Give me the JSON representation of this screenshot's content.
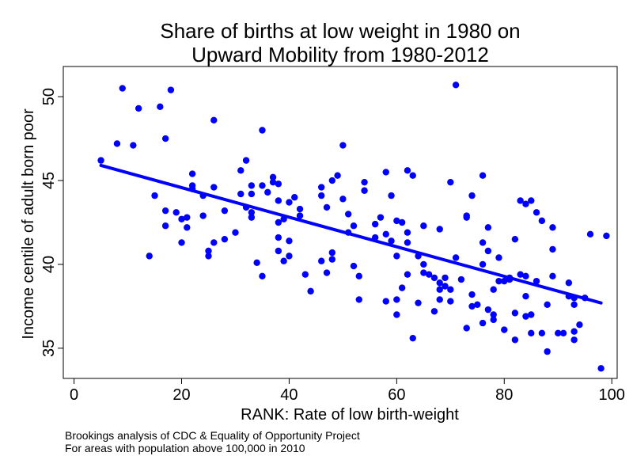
{
  "chart_data": {
    "type": "scatter",
    "title_lines": [
      "Share of births at low weight in 1980 on",
      "Upward Mobility from 1980-2012"
    ],
    "xlabel": "RANK: Rate of low birth-weight",
    "ylabel": "Income centile of adult born poor",
    "xlim": [
      -2,
      101
    ],
    "ylim": [
      33.2,
      51.8
    ],
    "xticks": [
      0,
      20,
      40,
      60,
      80,
      100
    ],
    "yticks": [
      35,
      40,
      45,
      50
    ],
    "point_color": "#0000ff",
    "line_color": "#0000ff",
    "fit_line": {
      "x": [
        5,
        98
      ],
      "y": [
        45.9,
        37.7
      ]
    },
    "points": [
      {
        "x": 5,
        "y": 46.2
      },
      {
        "x": 8,
        "y": 47.2
      },
      {
        "x": 9,
        "y": 50.5
      },
      {
        "x": 11,
        "y": 47.1
      },
      {
        "x": 12,
        "y": 49.3
      },
      {
        "x": 14,
        "y": 40.5
      },
      {
        "x": 15,
        "y": 44.1
      },
      {
        "x": 16,
        "y": 49.4
      },
      {
        "x": 17,
        "y": 47.5
      },
      {
        "x": 17,
        "y": 43.2
      },
      {
        "x": 17,
        "y": 42.3
      },
      {
        "x": 18,
        "y": 50.4
      },
      {
        "x": 19,
        "y": 43.1
      },
      {
        "x": 20,
        "y": 42.7
      },
      {
        "x": 20,
        "y": 41.3
      },
      {
        "x": 21,
        "y": 42.8
      },
      {
        "x": 21,
        "y": 42.2
      },
      {
        "x": 22,
        "y": 45.4
      },
      {
        "x": 22,
        "y": 44.7
      },
      {
        "x": 22,
        "y": 44.5
      },
      {
        "x": 24,
        "y": 44.1
      },
      {
        "x": 24,
        "y": 42.9
      },
      {
        "x": 25,
        "y": 40.8
      },
      {
        "x": 25,
        "y": 40.5
      },
      {
        "x": 26,
        "y": 48.6
      },
      {
        "x": 26,
        "y": 44.6
      },
      {
        "x": 26,
        "y": 41.3
      },
      {
        "x": 28,
        "y": 43.2
      },
      {
        "x": 28,
        "y": 41.5
      },
      {
        "x": 30,
        "y": 41.9
      },
      {
        "x": 31,
        "y": 45.6
      },
      {
        "x": 31,
        "y": 44.2
      },
      {
        "x": 32,
        "y": 46.2
      },
      {
        "x": 32,
        "y": 43.4
      },
      {
        "x": 33,
        "y": 44.7
      },
      {
        "x": 33,
        "y": 44.2
      },
      {
        "x": 33,
        "y": 43.1
      },
      {
        "x": 33,
        "y": 42.8
      },
      {
        "x": 34,
        "y": 40.1
      },
      {
        "x": 35,
        "y": 48.0
      },
      {
        "x": 35,
        "y": 44.7
      },
      {
        "x": 35,
        "y": 39.3
      },
      {
        "x": 36,
        "y": 44.3
      },
      {
        "x": 37,
        "y": 45.2
      },
      {
        "x": 37,
        "y": 44.9
      },
      {
        "x": 38,
        "y": 44.8
      },
      {
        "x": 38,
        "y": 43.8
      },
      {
        "x": 38,
        "y": 42.5
      },
      {
        "x": 38,
        "y": 41.6
      },
      {
        "x": 38,
        "y": 40.8
      },
      {
        "x": 39,
        "y": 42.7
      },
      {
        "x": 39,
        "y": 40.2
      },
      {
        "x": 40,
        "y": 43.7
      },
      {
        "x": 40,
        "y": 41.4
      },
      {
        "x": 40,
        "y": 40.5
      },
      {
        "x": 41,
        "y": 44.0
      },
      {
        "x": 42,
        "y": 43.3
      },
      {
        "x": 42,
        "y": 42.9
      },
      {
        "x": 43,
        "y": 39.4
      },
      {
        "x": 44,
        "y": 38.4
      },
      {
        "x": 46,
        "y": 44.6
      },
      {
        "x": 46,
        "y": 44.1
      },
      {
        "x": 46,
        "y": 40.2
      },
      {
        "x": 47,
        "y": 43.4
      },
      {
        "x": 47,
        "y": 39.5
      },
      {
        "x": 48,
        "y": 45.0
      },
      {
        "x": 48,
        "y": 40.7
      },
      {
        "x": 48,
        "y": 40.3
      },
      {
        "x": 49,
        "y": 45.3
      },
      {
        "x": 50,
        "y": 47.1
      },
      {
        "x": 50,
        "y": 43.9
      },
      {
        "x": 51,
        "y": 43.0
      },
      {
        "x": 51,
        "y": 41.9
      },
      {
        "x": 52,
        "y": 39.9
      },
      {
        "x": 52,
        "y": 42.3
      },
      {
        "x": 53,
        "y": 39.3
      },
      {
        "x": 53,
        "y": 37.9
      },
      {
        "x": 54,
        "y": 44.9
      },
      {
        "x": 54,
        "y": 44.4
      },
      {
        "x": 56,
        "y": 42.4
      },
      {
        "x": 56,
        "y": 41.6
      },
      {
        "x": 57,
        "y": 42.8
      },
      {
        "x": 58,
        "y": 45.5
      },
      {
        "x": 58,
        "y": 41.8
      },
      {
        "x": 58,
        "y": 37.8
      },
      {
        "x": 59,
        "y": 44.1
      },
      {
        "x": 59,
        "y": 41.4
      },
      {
        "x": 60,
        "y": 42.6
      },
      {
        "x": 60,
        "y": 40.5
      },
      {
        "x": 60,
        "y": 37.9
      },
      {
        "x": 60,
        "y": 37.0
      },
      {
        "x": 61,
        "y": 42.5
      },
      {
        "x": 61,
        "y": 38.6
      },
      {
        "x": 62,
        "y": 45.6
      },
      {
        "x": 62,
        "y": 41.9
      },
      {
        "x": 62,
        "y": 41.3
      },
      {
        "x": 62,
        "y": 39.4
      },
      {
        "x": 63,
        "y": 45.3
      },
      {
        "x": 63,
        "y": 35.6
      },
      {
        "x": 64,
        "y": 40.5
      },
      {
        "x": 64,
        "y": 37.7
      },
      {
        "x": 65,
        "y": 42.3
      },
      {
        "x": 65,
        "y": 40.0
      },
      {
        "x": 65,
        "y": 39.5
      },
      {
        "x": 66,
        "y": 39.4
      },
      {
        "x": 67,
        "y": 39.2
      },
      {
        "x": 67,
        "y": 37.2
      },
      {
        "x": 68,
        "y": 42.1
      },
      {
        "x": 68,
        "y": 38.9
      },
      {
        "x": 68,
        "y": 38.5
      },
      {
        "x": 68,
        "y": 37.9
      },
      {
        "x": 69,
        "y": 39.2
      },
      {
        "x": 69,
        "y": 38.7
      },
      {
        "x": 70,
        "y": 44.9
      },
      {
        "x": 70,
        "y": 38.5
      },
      {
        "x": 70,
        "y": 37.8
      },
      {
        "x": 71,
        "y": 50.7
      },
      {
        "x": 71,
        "y": 40.4
      },
      {
        "x": 72,
        "y": 39.1
      },
      {
        "x": 73,
        "y": 42.9
      },
      {
        "x": 73,
        "y": 42.8
      },
      {
        "x": 73,
        "y": 36.2
      },
      {
        "x": 74,
        "y": 44.1
      },
      {
        "x": 74,
        "y": 38.2
      },
      {
        "x": 74,
        "y": 37.5
      },
      {
        "x": 75,
        "y": 37.6
      },
      {
        "x": 76,
        "y": 45.3
      },
      {
        "x": 76,
        "y": 41.3
      },
      {
        "x": 76,
        "y": 40.0
      },
      {
        "x": 76,
        "y": 36.5
      },
      {
        "x": 77,
        "y": 42.2
      },
      {
        "x": 77,
        "y": 40.8
      },
      {
        "x": 77,
        "y": 37.3
      },
      {
        "x": 78,
        "y": 38.5
      },
      {
        "x": 78,
        "y": 37.0
      },
      {
        "x": 78,
        "y": 36.7
      },
      {
        "x": 79,
        "y": 39.0
      },
      {
        "x": 79,
        "y": 40.4
      },
      {
        "x": 80,
        "y": 39.0
      },
      {
        "x": 80,
        "y": 36.1
      },
      {
        "x": 81,
        "y": 39.2
      },
      {
        "x": 81,
        "y": 39.1
      },
      {
        "x": 82,
        "y": 41.5
      },
      {
        "x": 82,
        "y": 37.1
      },
      {
        "x": 82,
        "y": 35.5
      },
      {
        "x": 83,
        "y": 43.8
      },
      {
        "x": 83,
        "y": 39.4
      },
      {
        "x": 84,
        "y": 43.6
      },
      {
        "x": 84,
        "y": 39.3
      },
      {
        "x": 84,
        "y": 38.1
      },
      {
        "x": 84,
        "y": 36.9
      },
      {
        "x": 85,
        "y": 43.8
      },
      {
        "x": 85,
        "y": 37.0
      },
      {
        "x": 85,
        "y": 35.9
      },
      {
        "x": 86,
        "y": 43.1
      },
      {
        "x": 86,
        "y": 39.0
      },
      {
        "x": 87,
        "y": 42.6
      },
      {
        "x": 87,
        "y": 35.9
      },
      {
        "x": 88,
        "y": 37.6
      },
      {
        "x": 88,
        "y": 34.8
      },
      {
        "x": 89,
        "y": 42.2
      },
      {
        "x": 89,
        "y": 40.9
      },
      {
        "x": 89,
        "y": 39.3
      },
      {
        "x": 90,
        "y": 35.9
      },
      {
        "x": 91,
        "y": 35.9
      },
      {
        "x": 92,
        "y": 38.9
      },
      {
        "x": 92,
        "y": 38.1
      },
      {
        "x": 93,
        "y": 38.0
      },
      {
        "x": 93,
        "y": 37.6
      },
      {
        "x": 93,
        "y": 36.0
      },
      {
        "x": 93,
        "y": 35.5
      },
      {
        "x": 94,
        "y": 36.4
      },
      {
        "x": 95,
        "y": 38.0
      },
      {
        "x": 96,
        "y": 41.8
      },
      {
        "x": 98,
        "y": 33.8
      },
      {
        "x": 99,
        "y": 41.7
      }
    ]
  },
  "footnote": {
    "line1": "Brookings analysis of CDC & Equality of Opportunity Project",
    "line2": "For areas with population above 100,000 in 2010"
  }
}
